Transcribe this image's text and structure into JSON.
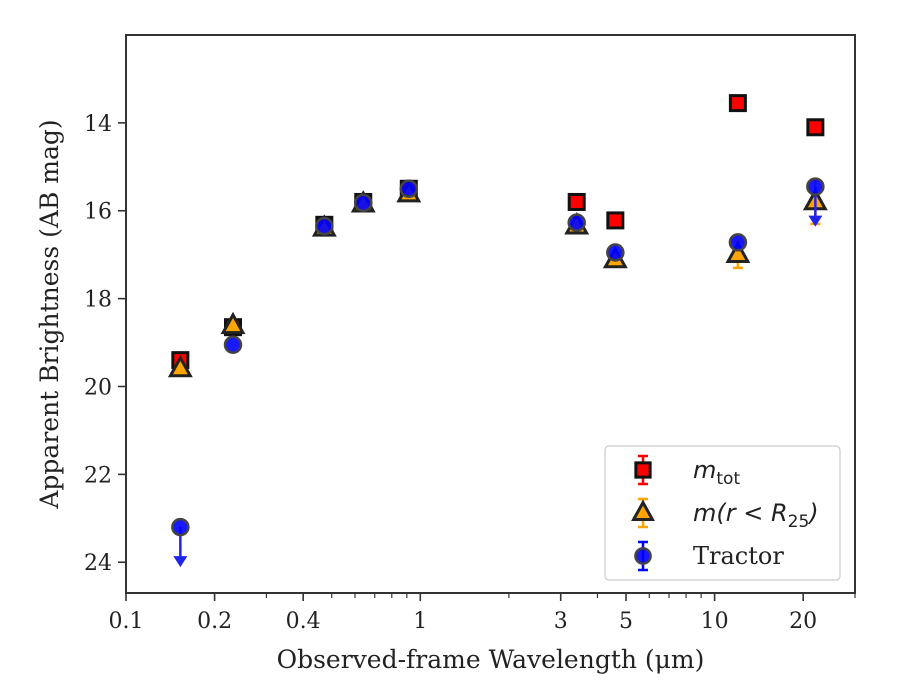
{
  "chart_data": {
    "type": "scatter",
    "xlabel": "Observed-frame Wavelength (μm)",
    "ylabel": "Apparent Brightness (AB mag)",
    "xscale": "log",
    "xlim": [
      0.1,
      30
    ],
    "ylim": [
      24.7,
      12.0
    ],
    "y_inverted": true,
    "x_ticks": [
      {
        "value": 0.1,
        "label": "0.1"
      },
      {
        "value": 0.2,
        "label": "0.2"
      },
      {
        "value": 0.4,
        "label": "0.4"
      },
      {
        "value": 1,
        "label": "1"
      },
      {
        "value": 3,
        "label": "3"
      },
      {
        "value": 5,
        "label": "5"
      },
      {
        "value": 10,
        "label": "10"
      },
      {
        "value": 20,
        "label": "20"
      }
    ],
    "x_minor_ticks": [
      0.3,
      0.5,
      0.6,
      0.7,
      0.8,
      0.9,
      2,
      4,
      6,
      7,
      8,
      9,
      30
    ],
    "y_ticks": [
      {
        "value": 14,
        "label": "14"
      },
      {
        "value": 16,
        "label": "16"
      },
      {
        "value": 18,
        "label": "18"
      },
      {
        "value": 20,
        "label": "20"
      },
      {
        "value": 22,
        "label": "22"
      },
      {
        "value": 24,
        "label": "24"
      }
    ],
    "legend_position": "lower-right",
    "series": [
      {
        "name": "m_tot",
        "legend": {
          "base": "m",
          "sub": "tot"
        },
        "marker": "square",
        "color": "#ff0000",
        "edge": "#111111",
        "points": [
          {
            "x": 0.153,
            "y": 19.4,
            "err": 0.08
          },
          {
            "x": 0.231,
            "y": 18.65,
            "err": 0
          },
          {
            "x": 0.472,
            "y": 16.32,
            "err": 0
          },
          {
            "x": 0.64,
            "y": 15.8,
            "err": 0
          },
          {
            "x": 0.914,
            "y": 15.5,
            "err": 0
          },
          {
            "x": 3.4,
            "y": 15.8,
            "err": 0
          },
          {
            "x": 4.6,
            "y": 16.22,
            "err": 0
          },
          {
            "x": 12.0,
            "y": 13.55,
            "err": 0
          },
          {
            "x": 22.0,
            "y": 14.1,
            "err": 0
          }
        ]
      },
      {
        "name": "m(r<R_25)",
        "legend": {
          "base": "m(r < R",
          "sub": "25",
          "tail": ")"
        },
        "marker": "triangle",
        "color": "#ffa500",
        "edge": "#222222",
        "points": [
          {
            "x": 0.153,
            "y": 19.6,
            "err": 0
          },
          {
            "x": 0.231,
            "y": 18.62,
            "err": 0
          },
          {
            "x": 0.472,
            "y": 16.4,
            "err": 0
          },
          {
            "x": 0.64,
            "y": 15.85,
            "err": 0
          },
          {
            "x": 0.914,
            "y": 15.62,
            "err": 0
          },
          {
            "x": 3.4,
            "y": 16.35,
            "err": 0
          },
          {
            "x": 4.6,
            "y": 17.12,
            "err": 0
          },
          {
            "x": 12.0,
            "y": 17.0,
            "err": 0.3
          },
          {
            "x": 22.0,
            "y": 15.8,
            "err": 0.5
          }
        ]
      },
      {
        "name": "Tractor",
        "legend": {
          "base": "Tractor"
        },
        "marker": "circle",
        "color": "#0000ff",
        "edge": "#444444",
        "upper_limit_color": "#2222ee",
        "points": [
          {
            "x": 0.153,
            "y": 23.2,
            "err": 0,
            "upper_limit": true
          },
          {
            "x": 0.231,
            "y": 19.05,
            "err": 0
          },
          {
            "x": 0.472,
            "y": 16.35,
            "err": 0
          },
          {
            "x": 0.64,
            "y": 15.82,
            "err": 0
          },
          {
            "x": 0.914,
            "y": 15.5,
            "err": 0
          },
          {
            "x": 3.4,
            "y": 16.27,
            "err": 0
          },
          {
            "x": 4.6,
            "y": 16.95,
            "err": 0
          },
          {
            "x": 12.0,
            "y": 16.72,
            "err": 0
          },
          {
            "x": 22.0,
            "y": 15.45,
            "err": 0,
            "upper_limit": true
          }
        ]
      }
    ]
  }
}
